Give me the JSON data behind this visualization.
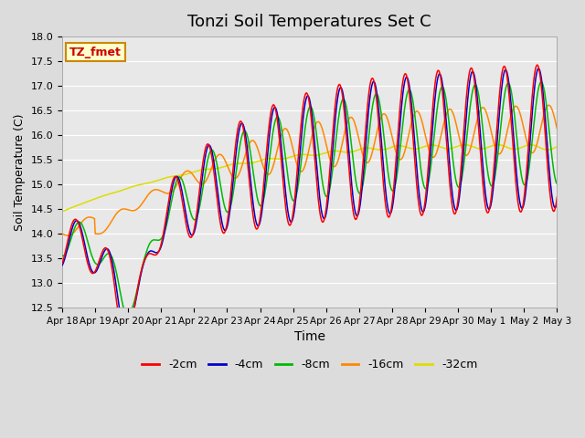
{
  "title": "Tonzi Soil Temperatures Set C",
  "xlabel": "Time",
  "ylabel": "Soil Temperature (C)",
  "ylim": [
    12.5,
    18.0
  ],
  "bg_color": "#dcdcdc",
  "plot_bg": "#e8e8e8",
  "legend_label": "TZ_fmet",
  "legend_box_color": "#ffffcc",
  "legend_box_edge": "#cc8800",
  "series_colors": {
    "-2cm": "#ff0000",
    "-4cm": "#0000cc",
    "-8cm": "#00bb00",
    "-16cm": "#ff8800",
    "-32cm": "#dddd00"
  },
  "series_linewidth": 1.1,
  "xtick_labels": [
    "Apr 18",
    "Apr 19",
    "Apr 20",
    "Apr 21",
    "Apr 22",
    "Apr 23",
    "Apr 24",
    "Apr 25",
    "Apr 26",
    "Apr 27",
    "Apr 28",
    "Apr 29",
    "Apr 30",
    "May 1",
    "May 2",
    "May 3"
  ],
  "grid_color": "#ffffff",
  "title_fontsize": 13
}
